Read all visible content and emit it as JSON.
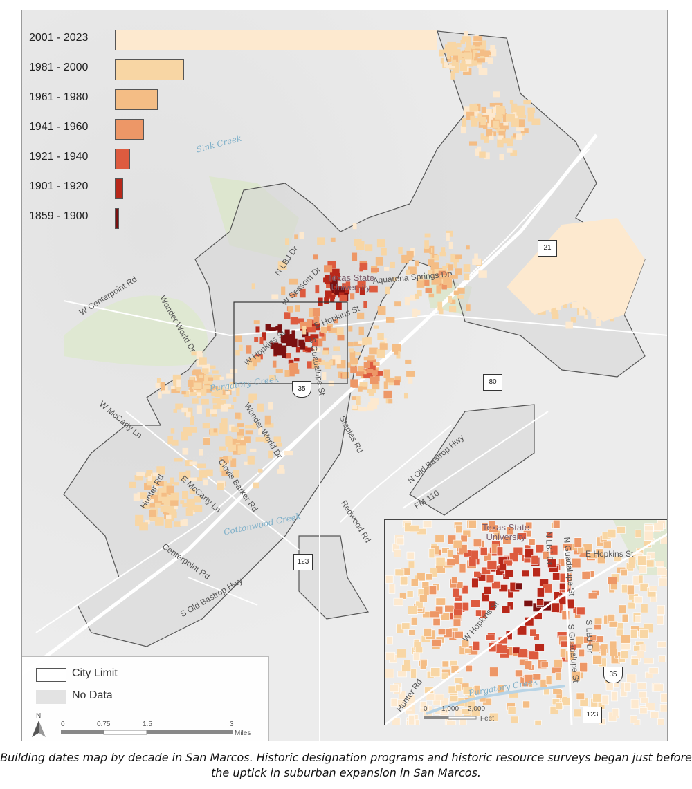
{
  "legend": {
    "items": [
      {
        "label": "2001 - 2023",
        "color": "#fde9cf"
      },
      {
        "label": "1981 - 2000",
        "color": "#f8d6a4"
      },
      {
        "label": "1961 - 1980",
        "color": "#f4bd85"
      },
      {
        "label": "1941 - 1960",
        "color": "#ed9767"
      },
      {
        "label": "1921 - 1940",
        "color": "#dd5b3f"
      },
      {
        "label": "1901 - 1920",
        "color": "#b8281a"
      },
      {
        "label": "1859 - 1900",
        "color": "#7a1010"
      }
    ]
  },
  "bottom_legend": {
    "city_limit": "City Limit",
    "no_data": "No Data",
    "north": "N",
    "scale_ticks": [
      "0",
      "0.75",
      "1.5",
      "3"
    ],
    "scale_unit": "Miles"
  },
  "labels": {
    "creeks": [
      "Sink Creek",
      "Purgatory Creek",
      "Cottonwood Creek"
    ],
    "campus": "Texas State University",
    "roads": [
      "W Centerpoint Rd",
      "Wonder World Dr",
      "N LBJ Dr",
      "W Sessom Dr",
      "Aquarena Springs Dr",
      "E Hopkins St",
      "W Hopkins St",
      "S Guadalupe St",
      "W McCarty Ln",
      "Wonder World Dr",
      "Staples Rd",
      "N Old Bastrop Hwy",
      "Clovis Barker Rd",
      "Hunter Rd",
      "E McCarty Ln",
      "FM 110",
      "Redwood Rd",
      "Centerpoint Rd",
      "S Old Bastrop Hwy"
    ],
    "shields": [
      "21",
      "80",
      "35",
      "123"
    ]
  },
  "inset": {
    "campus": "Texas State University",
    "roads": [
      "N LBJ Dr",
      "N Guadalupe St",
      "E Hopkins St",
      "W Hopkins St",
      "S LBJ Dr",
      "S Guadalupe St",
      "Hunter Rd",
      "Purgatory Creek"
    ],
    "shields": [
      "35",
      "123"
    ],
    "scale_ticks": [
      "0",
      "1,000",
      "2,000"
    ],
    "scale_unit": "Feet"
  },
  "caption": "Building dates map by decade in San Marcos. Historic designation programs and historic resource surveys began just before the uptick in suburban expansion in San Marcos."
}
